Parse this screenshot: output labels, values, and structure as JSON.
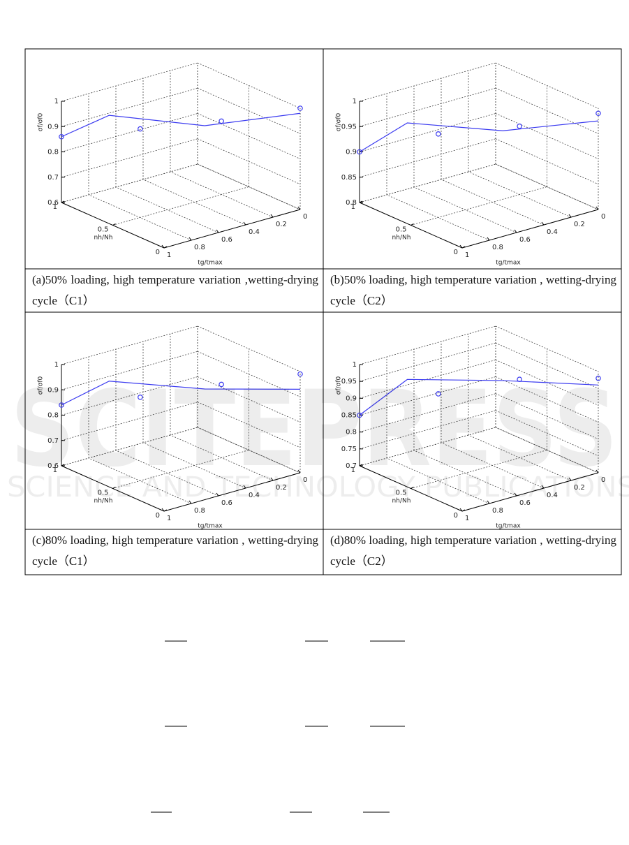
{
  "chart_data": [
    {
      "type": "line3d",
      "caption": "(a)50% loading, high temperature variation ,wetting-drying cycle（C1）",
      "zlabel": "σf/σf0",
      "ylabel": "nh/Nh",
      "xlabel": "tg/tmax",
      "zlim": [
        0.6,
        1
      ],
      "zticks": [
        0.6,
        0.7,
        0.8,
        0.9,
        1
      ],
      "ylim": [
        0,
        1
      ],
      "yticks": [
        0,
        0.5,
        1
      ],
      "xlim": [
        0,
        1
      ],
      "xticks": [
        0,
        0.2,
        0.4,
        0.6,
        0.8,
        1
      ],
      "grid": true,
      "color": "#3b3bf0",
      "points": {
        "x": [
          1,
          0.67,
          0.33,
          0
        ],
        "y": [
          1,
          0.67,
          0.33,
          0
        ],
        "values": [
          0.86,
          0.9,
          0.94,
          1.0
        ]
      },
      "line": {
        "x": [
          1,
          0.8,
          0.4,
          0
        ],
        "y": [
          1,
          0.8,
          0.4,
          0
        ],
        "values": [
          0.86,
          0.95,
          0.92,
          0.98
        ]
      }
    },
    {
      "type": "line3d",
      "caption": "(b)50% loading, high temperature variation , wetting-drying cycle（C2）",
      "zlabel": "σf/σf0",
      "ylabel": "nh/Nh",
      "xlabel": "tg/tmax",
      "zlim": [
        0.8,
        1
      ],
      "zticks": [
        0.8,
        0.85,
        0.9,
        0.95,
        1
      ],
      "ylim": [
        0,
        1
      ],
      "yticks": [
        0,
        0.5,
        1
      ],
      "xlim": [
        0,
        1
      ],
      "xticks": [
        0,
        0.2,
        0.4,
        0.6,
        0.8,
        1
      ],
      "grid": true,
      "color": "#3b3bf0",
      "points": {
        "x": [
          1,
          0.67,
          0.33,
          0
        ],
        "y": [
          1,
          0.67,
          0.33,
          0
        ],
        "values": [
          0.9,
          0.94,
          0.96,
          0.99
        ]
      },
      "line": {
        "x": [
          1,
          0.8,
          0.4,
          0
        ],
        "y": [
          1,
          0.8,
          0.4,
          0
        ],
        "values": [
          0.9,
          0.96,
          0.95,
          0.975
        ]
      }
    },
    {
      "type": "line3d",
      "caption": "(c)80% loading, high temperature variation , wetting-drying cycle（C1）",
      "zlabel": "σf/σf0",
      "ylabel": "nh/Nh",
      "xlabel": "tg/tmax",
      "zlim": [
        0.6,
        1
      ],
      "zticks": [
        0.6,
        0.7,
        0.8,
        0.9,
        1
      ],
      "ylim": [
        0,
        1
      ],
      "yticks": [
        0,
        0.5,
        1
      ],
      "xlim": [
        0,
        1
      ],
      "xticks": [
        0,
        0.2,
        0.4,
        0.6,
        0.8,
        1
      ],
      "grid": true,
      "color": "#3b3bf0",
      "points": {
        "x": [
          1,
          0.67,
          0.33,
          0
        ],
        "y": [
          1,
          0.67,
          0.33,
          0
        ],
        "values": [
          0.84,
          0.88,
          0.94,
          0.99
        ]
      },
      "line": {
        "x": [
          1,
          0.8,
          0.4,
          0
        ],
        "y": [
          1,
          0.8,
          0.4,
          0
        ],
        "values": [
          0.84,
          0.94,
          0.92,
          0.93
        ]
      }
    },
    {
      "type": "line3d",
      "caption": "(d)80% loading, high temperature variation , wetting-drying cycle（C2）",
      "zlabel": "σf/σf0",
      "ylabel": "nh/Nh",
      "xlabel": "tg/tmax",
      "zlim": [
        0.7,
        1
      ],
      "zticks": [
        0.7,
        0.75,
        0.8,
        0.85,
        0.9,
        0.95,
        1
      ],
      "ylim": [
        0,
        1
      ],
      "yticks": [
        0,
        0.5,
        1
      ],
      "xlim": [
        0,
        1
      ],
      "xticks": [
        0,
        0.2,
        0.4,
        0.6,
        0.8,
        1
      ],
      "grid": true,
      "color": "#3b3bf0",
      "points": {
        "x": [
          1,
          0.67,
          0.33,
          0
        ],
        "y": [
          1,
          0.67,
          0.33,
          0
        ],
        "values": [
          0.85,
          0.92,
          0.97,
          0.98
        ]
      },
      "line": {
        "x": [
          1,
          0.8,
          0.4,
          0
        ],
        "y": [
          1,
          0.8,
          0.4,
          0
        ],
        "values": [
          0.85,
          0.96,
          0.965,
          0.96
        ]
      }
    }
  ],
  "watermark": {
    "logo": "SCITEPRESS",
    "tagline": "SCIENCE AND TECHNOLOGY PUBLICATIONS"
  }
}
